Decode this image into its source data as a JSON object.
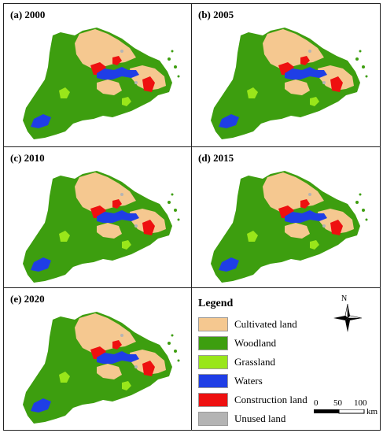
{
  "panels": [
    {
      "label": "(a) 2000"
    },
    {
      "label": "(b) 2005"
    },
    {
      "label": "(c) 2010"
    },
    {
      "label": "(d) 2015"
    },
    {
      "label": "(e) 2020"
    }
  ],
  "legend": {
    "title": "Legend",
    "items": [
      {
        "label": "Cultivated land",
        "color": "#f5c890"
      },
      {
        "label": "Woodland",
        "color": "#3d9e0f"
      },
      {
        "label": "Grassland",
        "color": "#99e61a"
      },
      {
        "label": "Waters",
        "color": "#1f3ee6"
      },
      {
        "label": "Construction land",
        "color": "#ee1010"
      },
      {
        "label": "Unused land",
        "color": "#b4b4b4"
      }
    ]
  },
  "north_arrow": {
    "label": "N"
  },
  "scale_bar": {
    "ticks": [
      "0",
      "50",
      "100"
    ],
    "unit": "km"
  }
}
